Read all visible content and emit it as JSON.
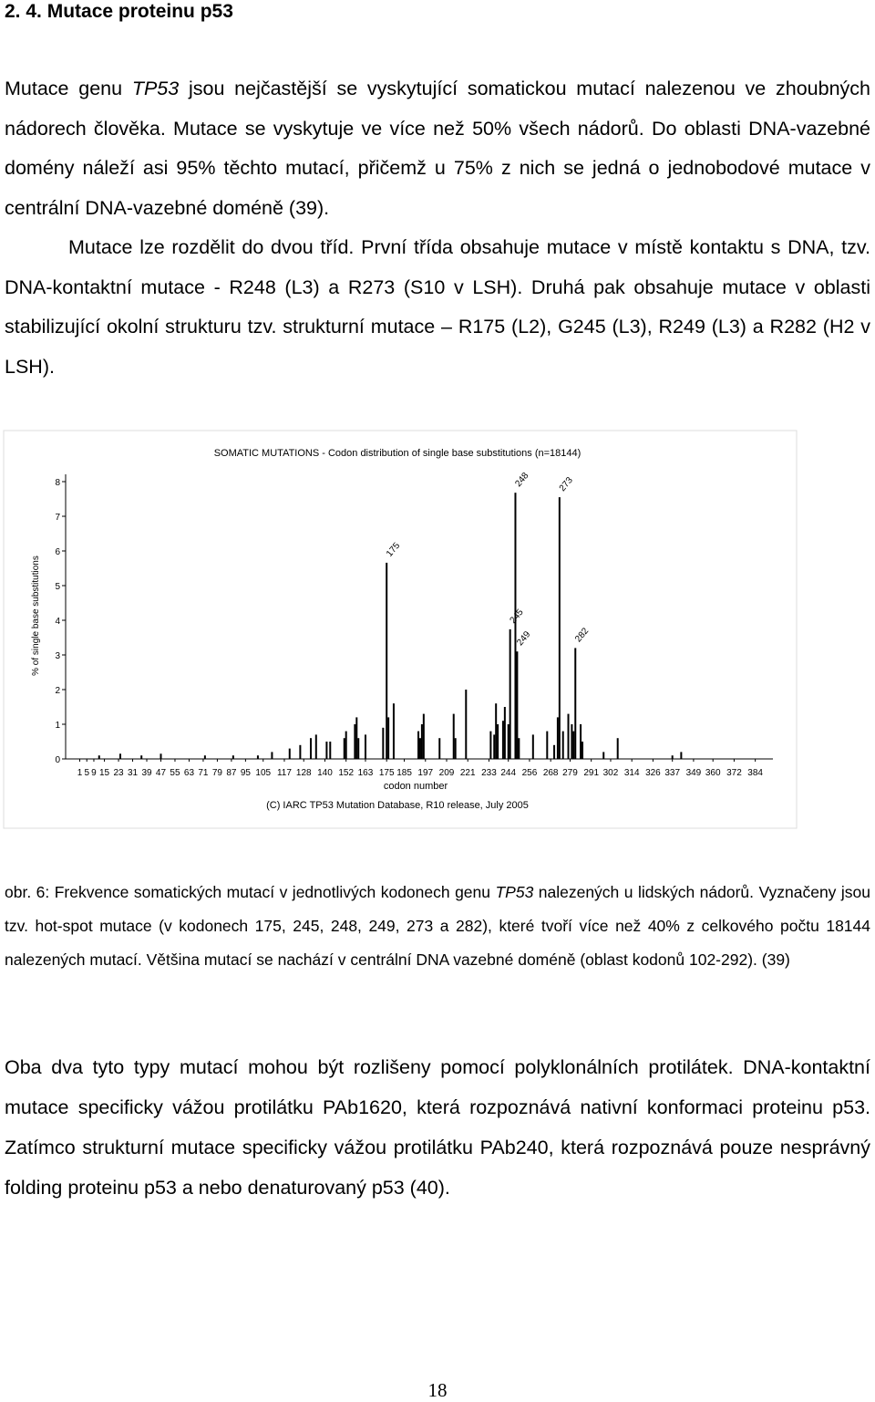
{
  "heading": "2. 4. Mutace proteinu p53",
  "paragraphs": [
    [
      "Mutace genu ",
      "TP53",
      " jsou nejčastější se vyskytující somatickou mutací nalezenou ve zhoubných nádorech člověka. Mutace se vyskytuje ve více než 50% všech nádorů. Do oblasti DNA-vazebné domény náleží asi 95% těchto mutací, přičemž u 75% z nich se jedná o jednobodové mutace v centrální DNA-vazebné doméně (39)."
    ],
    [
      "Mutace lze rozdělit do dvou tříd. První třída obsahuje mutace v místě kontaktu s DNA, tzv. DNA-kontaktní mutace - R248 (L3) a R273 (S10 v LSH). Druhá pak obsahuje mutace v oblasti stabilizující okolní strukturu tzv. strukturní mutace – R175 (L2), G245 (L3), R249 (L3) a R282 (H2 v LSH)."
    ],
    [
      "Oba dva tyto typy mutací mohou být rozlišeny pomocí polyklonálních protilátek. DNA-kontaktní mutace specificky vážou protilátku PAb1620, která rozpoznává nativní konformaci proteinu p53. Zatímco strukturní mutace specificky vážou protilátku PAb240, která rozpoznává pouze nesprávný folding proteinu p53 a nebo denaturovaný p53 (40)."
    ]
  ],
  "caption": [
    "obr. 6: Frekvence somatických mutací v jednotlivých kodonech genu ",
    "TP53",
    " nalezených u lidských nádorů. Vyznačeny jsou tzv. hot-spot mutace (v kodonech 175, 245, 248, 249, 273 a 282), které tvoří více než 40% z celkového počtu 18144 nalezených mutací. Většina mutací se nachází v centrální DNA vazebné doméně (oblast kodonů 102-292). (39)"
  ],
  "page_number": "18",
  "chart_data": {
    "type": "bar",
    "title": "SOMATIC MUTATIONS - Codon distribution of single base substitutions (n=18144)",
    "x_label": "codon number",
    "y_label": "% of single base substitutions",
    "source": "(C) IARC TP53 Mutation Database, R10 release, July 2005",
    "color": "#000000",
    "x": [
      12,
      24,
      36,
      47,
      72,
      88,
      102,
      110,
      120,
      126,
      132,
      135,
      141,
      143,
      151,
      152,
      157,
      158,
      159,
      163,
      173,
      175,
      176,
      179,
      193,
      194,
      195,
      196,
      205,
      213,
      214,
      220,
      234,
      236,
      237,
      238,
      241,
      242,
      244,
      245,
      248,
      249,
      250,
      258,
      266,
      270,
      272,
      273,
      275,
      278,
      280,
      281,
      282,
      285,
      286,
      298,
      306,
      337,
      342
    ],
    "values": [
      0.1,
      0.15,
      0.1,
      0.15,
      0.1,
      0.1,
      0.1,
      0.2,
      0.3,
      0.4,
      0.6,
      0.7,
      0.5,
      0.5,
      0.6,
      0.8,
      1.0,
      1.2,
      0.6,
      0.7,
      0.9,
      5.66,
      1.2,
      1.6,
      0.8,
      0.6,
      1.0,
      1.3,
      0.6,
      1.3,
      0.6,
      2.0,
      0.8,
      0.7,
      1.6,
      1.0,
      1.1,
      1.5,
      1.0,
      3.74,
      7.68,
      3.1,
      0.6,
      0.7,
      0.8,
      0.4,
      1.2,
      7.55,
      0.8,
      1.3,
      1.0,
      0.8,
      3.2,
      1.0,
      0.5,
      0.2,
      0.6,
      0.1,
      0.2
    ],
    "annotations": [
      {
        "text": "175",
        "x": 175
      },
      {
        "text": "245",
        "x": 245
      },
      {
        "text": "248",
        "x": 248
      },
      {
        "text": "249",
        "x": 249
      },
      {
        "text": "273",
        "x": 273
      },
      {
        "text": "282",
        "x": 282
      }
    ],
    "xlim": [
      -7,
      394
    ],
    "ylim": [
      0,
      8
    ],
    "yticks": [
      0,
      1,
      2,
      3,
      4,
      5,
      6,
      7,
      8
    ],
    "xticks": [
      1,
      5,
      9,
      15,
      23,
      31,
      39,
      47,
      55,
      63,
      71,
      79,
      87,
      95,
      105,
      117,
      128,
      140,
      152,
      163,
      175,
      185,
      197,
      209,
      221,
      233,
      244,
      256,
      268,
      279,
      291,
      302,
      314,
      326,
      337,
      349,
      360,
      372,
      384
    ]
  }
}
